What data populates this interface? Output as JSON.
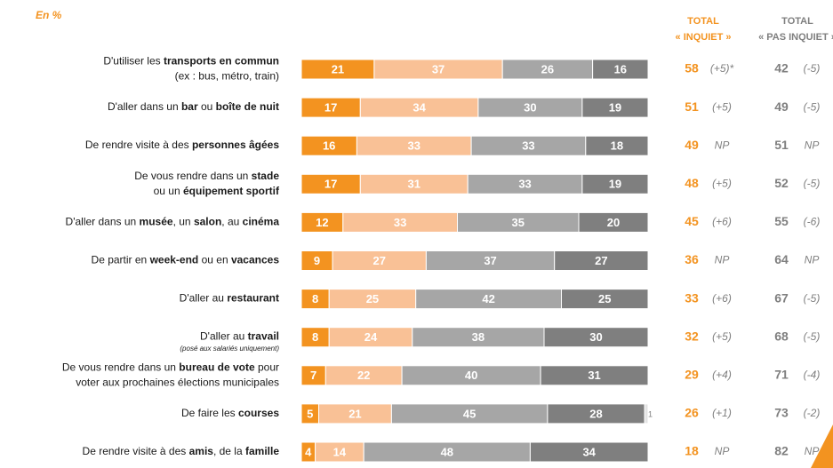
{
  "chart_data": {
    "type": "stacked-bar-horizontal",
    "subtitle": "En %",
    "xlim": [
      0,
      100
    ],
    "categories": [
      [
        [
          {
            "text": "D'utiliser les "
          },
          {
            "text": "transports en commun",
            "bold": true
          }
        ],
        [
          {
            "text": "(ex : bus, métro, train)"
          }
        ]
      ],
      [
        [
          {
            "text": "D'aller dans un "
          },
          {
            "text": "bar",
            "bold": true
          },
          {
            "text": " ou "
          },
          {
            "text": "boîte de nuit",
            "bold": true
          }
        ]
      ],
      [
        [
          {
            "text": "De rendre visite à des "
          },
          {
            "text": "personnes âgées",
            "bold": true
          }
        ]
      ],
      [
        [
          {
            "text": "De vous rendre dans un "
          },
          {
            "text": "stade",
            "bold": true
          }
        ],
        [
          {
            "text": "ou un "
          },
          {
            "text": "équipement sportif",
            "bold": true
          }
        ]
      ],
      [
        [
          {
            "text": "D'aller dans un "
          },
          {
            "text": "musée",
            "bold": true
          },
          {
            "text": ", un "
          },
          {
            "text": "salon",
            "bold": true
          },
          {
            "text": ", au "
          },
          {
            "text": "cinéma",
            "bold": true
          }
        ]
      ],
      [
        [
          {
            "text": "De partir en "
          },
          {
            "text": "week-end",
            "bold": true
          },
          {
            "text": " ou en "
          },
          {
            "text": "vacances",
            "bold": true
          }
        ]
      ],
      [
        [
          {
            "text": "D'aller au "
          },
          {
            "text": "restaurant",
            "bold": true
          }
        ]
      ],
      [
        [
          {
            "text": "D'aller au "
          },
          {
            "text": "travail",
            "bold": true
          }
        ]
      ],
      [
        [
          {
            "text": "De vous rendre dans un "
          },
          {
            "text": "bureau de vote",
            "bold": true
          },
          {
            "text": " pour"
          }
        ],
        [
          {
            "text": "voter aux prochaines élections municipales"
          }
        ]
      ],
      [
        [
          {
            "text": "De faire les "
          },
          {
            "text": "courses",
            "bold": true
          }
        ]
      ],
      [
        [
          {
            "text": "De rendre visite à des "
          },
          {
            "text": "amis",
            "bold": true
          },
          {
            "text": ", de la "
          },
          {
            "text": "famille",
            "bold": true
          }
        ]
      ]
    ],
    "notes": [
      null,
      null,
      null,
      null,
      null,
      null,
      null,
      "(posé aux salariés uniquement)",
      null,
      null,
      null
    ],
    "series": [
      {
        "color": "#f39320",
        "values": [
          21,
          17,
          16,
          17,
          12,
          9,
          8,
          8,
          7,
          5,
          4
        ]
      },
      {
        "color": "#f9c196",
        "values": [
          37,
          34,
          33,
          31,
          33,
          27,
          25,
          24,
          22,
          21,
          14
        ]
      },
      {
        "color": "#a6a6a6",
        "values": [
          26,
          30,
          33,
          33,
          35,
          37,
          42,
          38,
          40,
          45,
          48
        ]
      },
      {
        "color": "#7f7f7f",
        "values": [
          16,
          19,
          18,
          19,
          20,
          27,
          25,
          30,
          31,
          28,
          34
        ]
      },
      {
        "color": "#e3e3e3",
        "values": [
          null,
          null,
          null,
          null,
          null,
          null,
          null,
          null,
          null,
          1,
          null
        ]
      }
    ],
    "totals": [
      {
        "header": [
          "TOTAL",
          "« INQUIET »"
        ],
        "color": "#f39320",
        "values": [
          58,
          51,
          49,
          48,
          45,
          36,
          33,
          32,
          29,
          26,
          18
        ],
        "changes": [
          "(+5)*",
          "(+5)",
          "NP",
          "(+5)",
          "(+6)",
          "NP",
          "(+6)",
          "(+5)",
          "(+4)",
          "(+1)",
          "NP"
        ]
      },
      {
        "header": [
          "TOTAL",
          "« PAS INQUIET »"
        ],
        "color": "#7f7f7f",
        "values": [
          42,
          49,
          51,
          52,
          55,
          64,
          67,
          68,
          71,
          73,
          82
        ],
        "changes": [
          "(-5)",
          "(-5)",
          "NP",
          "(-5)",
          "(-6)",
          "NP",
          "(-5)",
          "(-5)",
          "(-4)",
          "(-2)",
          "NP"
        ]
      }
    ]
  }
}
